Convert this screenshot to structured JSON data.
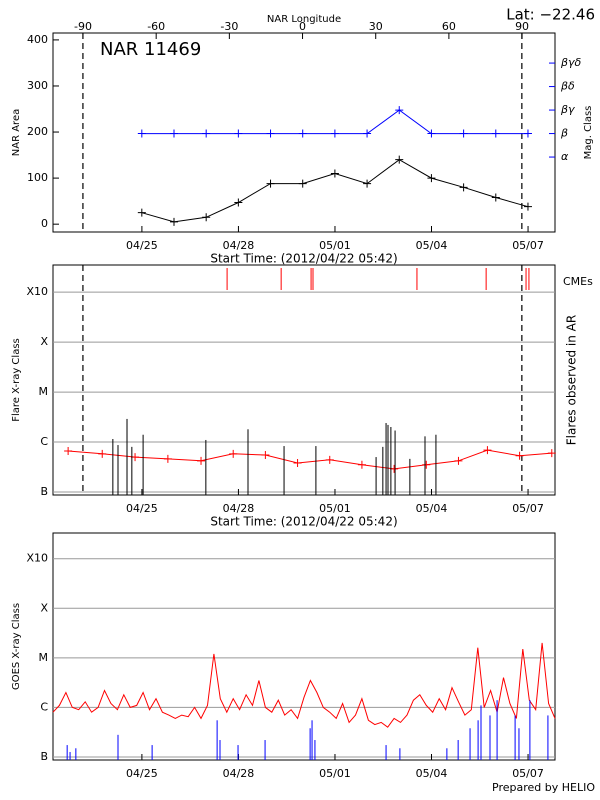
{
  "chart_data": [
    {
      "type": "line",
      "title": "NAR 11469",
      "annotation": "Lat: −22.46",
      "x_label": "Start Time: (2012/04/22 05:42)",
      "x2_label": "NAR Longitude",
      "y_label": "NAR Area",
      "y2_label": "Mag. Class",
      "xlim": [
        0,
        15.6
      ],
      "xticks": [
        {
          "value": 2.7625,
          "label": "04/25"
        },
        {
          "value": 5.7625,
          "label": "04/28"
        },
        {
          "value": 8.7625,
          "label": "05/01"
        },
        {
          "value": 11.7625,
          "label": "05/04"
        },
        {
          "value": 14.7625,
          "label": "05/07"
        }
      ],
      "x2lim": [
        -102.3,
        103.5
      ],
      "x2ticks": [
        -90,
        -60,
        -30,
        0,
        30,
        60,
        90
      ],
      "ylim": [
        -17,
        415
      ],
      "yticks": [
        0,
        100,
        200,
        300,
        400
      ],
      "y2lim": [
        -1.19,
        7.28
      ],
      "y2ticks": [
        {
          "value": 2,
          "label": "α"
        },
        {
          "value": 3,
          "label": "β"
        },
        {
          "value": 4,
          "label": "βγ"
        },
        {
          "value": 5,
          "label": "βδ"
        },
        {
          "value": 6,
          "label": "βγδ"
        }
      ],
      "grid": false,
      "limb_x": [
        0.93,
        14.57
      ],
      "series": [
        {
          "color": "#000000",
          "marker": "+",
          "x": [
            2.76,
            3.76,
            4.76,
            5.76,
            6.76,
            7.76,
            8.76,
            9.76,
            10.76,
            11.76,
            12.76,
            13.76,
            14.76
          ],
          "values": [
            25,
            5,
            15,
            47,
            88,
            88,
            110,
            88,
            140,
            100,
            80,
            58,
            38
          ]
        },
        {
          "color": "#0000ff",
          "marker": "+",
          "axis": "y2",
          "x": [
            2.76,
            3.76,
            4.76,
            5.76,
            6.76,
            7.76,
            8.76,
            9.76,
            10.76,
            11.76,
            12.76,
            13.76,
            14.76
          ],
          "values": [
            3,
            3,
            3,
            3,
            3,
            3,
            3,
            3,
            4,
            3,
            3,
            3,
            3
          ]
        }
      ]
    },
    {
      "type": "line",
      "x_label": "Start Time: (2012/04/22 05:42)",
      "y_label": "Flare X-ray Class",
      "y2_label": "Flares observed in AR",
      "xlim": [
        0,
        15.6
      ],
      "xticks": [
        {
          "value": 2.7625,
          "label": "04/25"
        },
        {
          "value": 5.7625,
          "label": "04/28"
        },
        {
          "value": 8.7625,
          "label": "05/01"
        },
        {
          "value": 11.7625,
          "label": "05/04"
        },
        {
          "value": 14.7625,
          "label": "05/07"
        }
      ],
      "log_scale": true,
      "ylim": [
        8.7e-08,
        0.0035
      ],
      "yticks": [
        {
          "value": 1e-07,
          "label": "B"
        },
        {
          "value": 1e-06,
          "label": "C"
        },
        {
          "value": 1e-05,
          "label": "M"
        },
        {
          "value": 0.0001,
          "label": "X"
        },
        {
          "value": 0.001,
          "label": "X10"
        }
      ],
      "grid": true,
      "limb_x": [
        0.93,
        14.57
      ],
      "series": [
        {
          "color": "#ff0000",
          "marker": "+",
          "x": [
            0.47,
            1.53,
            2.55,
            3.57,
            4.6,
            5.6,
            6.6,
            7.6,
            8.6,
            9.6,
            10.6,
            11.6,
            12.6,
            13.5,
            14.5,
            15.5
          ],
          "values": [
            6.6e-07,
            5.8e-07,
            5e-07,
            4.6e-07,
            4.2e-07,
            5.8e-07,
            5.5e-07,
            3.8e-07,
            4.4e-07,
            3.5e-07,
            2.9e-07,
            3.5e-07,
            4.2e-07,
            6.9e-07,
            5.3e-07,
            6e-07
          ]
        },
        {
          "color": "#000000",
          "style": "spikes",
          "x": [
            1.86,
            2.02,
            2.3,
            2.45,
            2.8,
            4.75,
            6.06,
            7.18,
            8.17,
            10.04,
            10.25,
            10.35,
            10.41,
            10.5,
            10.63,
            11.09,
            11.56,
            11.9
          ],
          "values": [
            1.15e-06,
            8.7e-07,
            2.9e-06,
            8e-07,
            1.4e-06,
            1.1e-06,
            1.8e-06,
            8.3e-07,
            8.3e-07,
            5e-07,
            8e-07,
            2.4e-06,
            2.2e-06,
            2e-06,
            1.7e-06,
            4.6e-07,
            1.3e-06,
            1.4e-06
          ]
        },
        {
          "name": "CMEs",
          "color": "#ff0000",
          "style": "events",
          "x": [
            5.41,
            7.09,
            8.02,
            8.08,
            11.31,
            13.46,
            14.7,
            14.79
          ]
        }
      ]
    },
    {
      "type": "line",
      "y_label": "GOES X-ray Class",
      "xlim": [
        0,
        15.6
      ],
      "xticks": [
        {
          "value": 2.7625,
          "label": "04/25"
        },
        {
          "value": 5.7625,
          "label": "04/28"
        },
        {
          "value": 8.7625,
          "label": "05/01"
        },
        {
          "value": 11.7625,
          "label": "05/04"
        },
        {
          "value": 14.7625,
          "label": "05/07"
        }
      ],
      "log_scale": true,
      "ylim": [
        8.7e-08,
        0.0033
      ],
      "yticks": [
        {
          "value": 1e-07,
          "label": "B"
        },
        {
          "value": 1e-06,
          "label": "C"
        },
        {
          "value": 1e-05,
          "label": "M"
        },
        {
          "value": 0.0001,
          "label": "X"
        },
        {
          "value": 0.001,
          "label": "X10"
        }
      ],
      "grid": true,
      "series": [
        {
          "color": "#ff0000",
          "x": [
            0,
            0.2,
            0.4,
            0.6,
            0.8,
            1,
            1.2,
            1.4,
            1.6,
            1.8,
            2,
            2.2,
            2.4,
            2.6,
            2.8,
            3,
            3.2,
            3.4,
            3.6,
            3.8,
            4,
            4.2,
            4.4,
            4.6,
            4.8,
            5,
            5.2,
            5.4,
            5.6,
            5.8,
            6,
            6.2,
            6.4,
            6.6,
            6.8,
            7,
            7.2,
            7.4,
            7.6,
            7.8,
            8,
            8.2,
            8.4,
            8.6,
            8.8,
            9,
            9.2,
            9.4,
            9.6,
            9.8,
            10,
            10.2,
            10.4,
            10.6,
            10.8,
            11,
            11.2,
            11.4,
            11.6,
            11.8,
            12,
            12.2,
            12.4,
            12.6,
            12.8,
            13,
            13.2,
            13.4,
            13.6,
            13.8,
            14,
            14.2,
            14.4,
            14.6,
            14.8,
            15,
            15.2,
            15.4,
            15.6
          ],
          "values": [
            8e-07,
            1.1e-06,
            2e-06,
            1e-06,
            9e-07,
            1.3e-06,
            8e-07,
            1e-06,
            2.2e-06,
            1.2e-06,
            9e-07,
            1.8e-06,
            1e-06,
            1.1e-06,
            2e-06,
            9e-07,
            1.5e-06,
            8e-07,
            7e-07,
            6e-07,
            7e-07,
            6.5e-07,
            1e-06,
            6e-07,
            1.1e-06,
            1.2e-05,
            1.5e-06,
            8e-07,
            1.5e-06,
            9e-07,
            1.8e-06,
            1.1e-06,
            3.5e-06,
            1e-06,
            8e-07,
            1.4e-06,
            7e-07,
            9e-07,
            6e-07,
            1.6e-06,
            3.5e-06,
            2e-06,
            1e-06,
            8e-07,
            6e-07,
            1.2e-06,
            5e-07,
            7e-07,
            1.5e-06,
            5.5e-07,
            4.5e-07,
            5e-07,
            4e-07,
            6e-07,
            5e-07,
            7e-07,
            1.4e-06,
            1.8e-06,
            1.1e-06,
            8e-07,
            1.5e-06,
            9e-07,
            2.5e-06,
            1.3e-06,
            7e-07,
            9e-07,
            1.6e-05,
            1e-06,
            2.2e-06,
            8e-07,
            4e-06,
            1.2e-06,
            6e-07,
            1.5e-05,
            1.4e-06,
            9e-07,
            2e-05,
            1.2e-06,
            6e-07
          ]
        },
        {
          "color": "#0000ff",
          "style": "spikes",
          "x": [
            0.44,
            0.53,
            0.71,
            2.02,
            3.08,
            5.1,
            5.19,
            5.75,
            6.59,
            7.99,
            8.05,
            8.14,
            10.35,
            10.78,
            12.24,
            12.59,
            12.96,
            13.21,
            13.3,
            13.58,
            13.8,
            14.36,
            14.48,
            14.82,
            15.38
          ],
          "values": [
            1.74e-07,
            1.26e-07,
            1.5e-07,
            2.8e-07,
            1.74e-07,
            5.5e-07,
            2.2e-07,
            1.74e-07,
            2.2e-07,
            3.8e-07,
            5.5e-07,
            2.2e-07,
            1.74e-07,
            1.5e-07,
            1.5e-07,
            2.2e-07,
            3.8e-07,
            5.5e-07,
            1.1e-06,
            6.9e-07,
            1.4e-06,
            6.9e-07,
            3.8e-07,
            1.4e-06,
            6.9e-07
          ]
        }
      ]
    }
  ],
  "footer": "Prepared by HELIO"
}
